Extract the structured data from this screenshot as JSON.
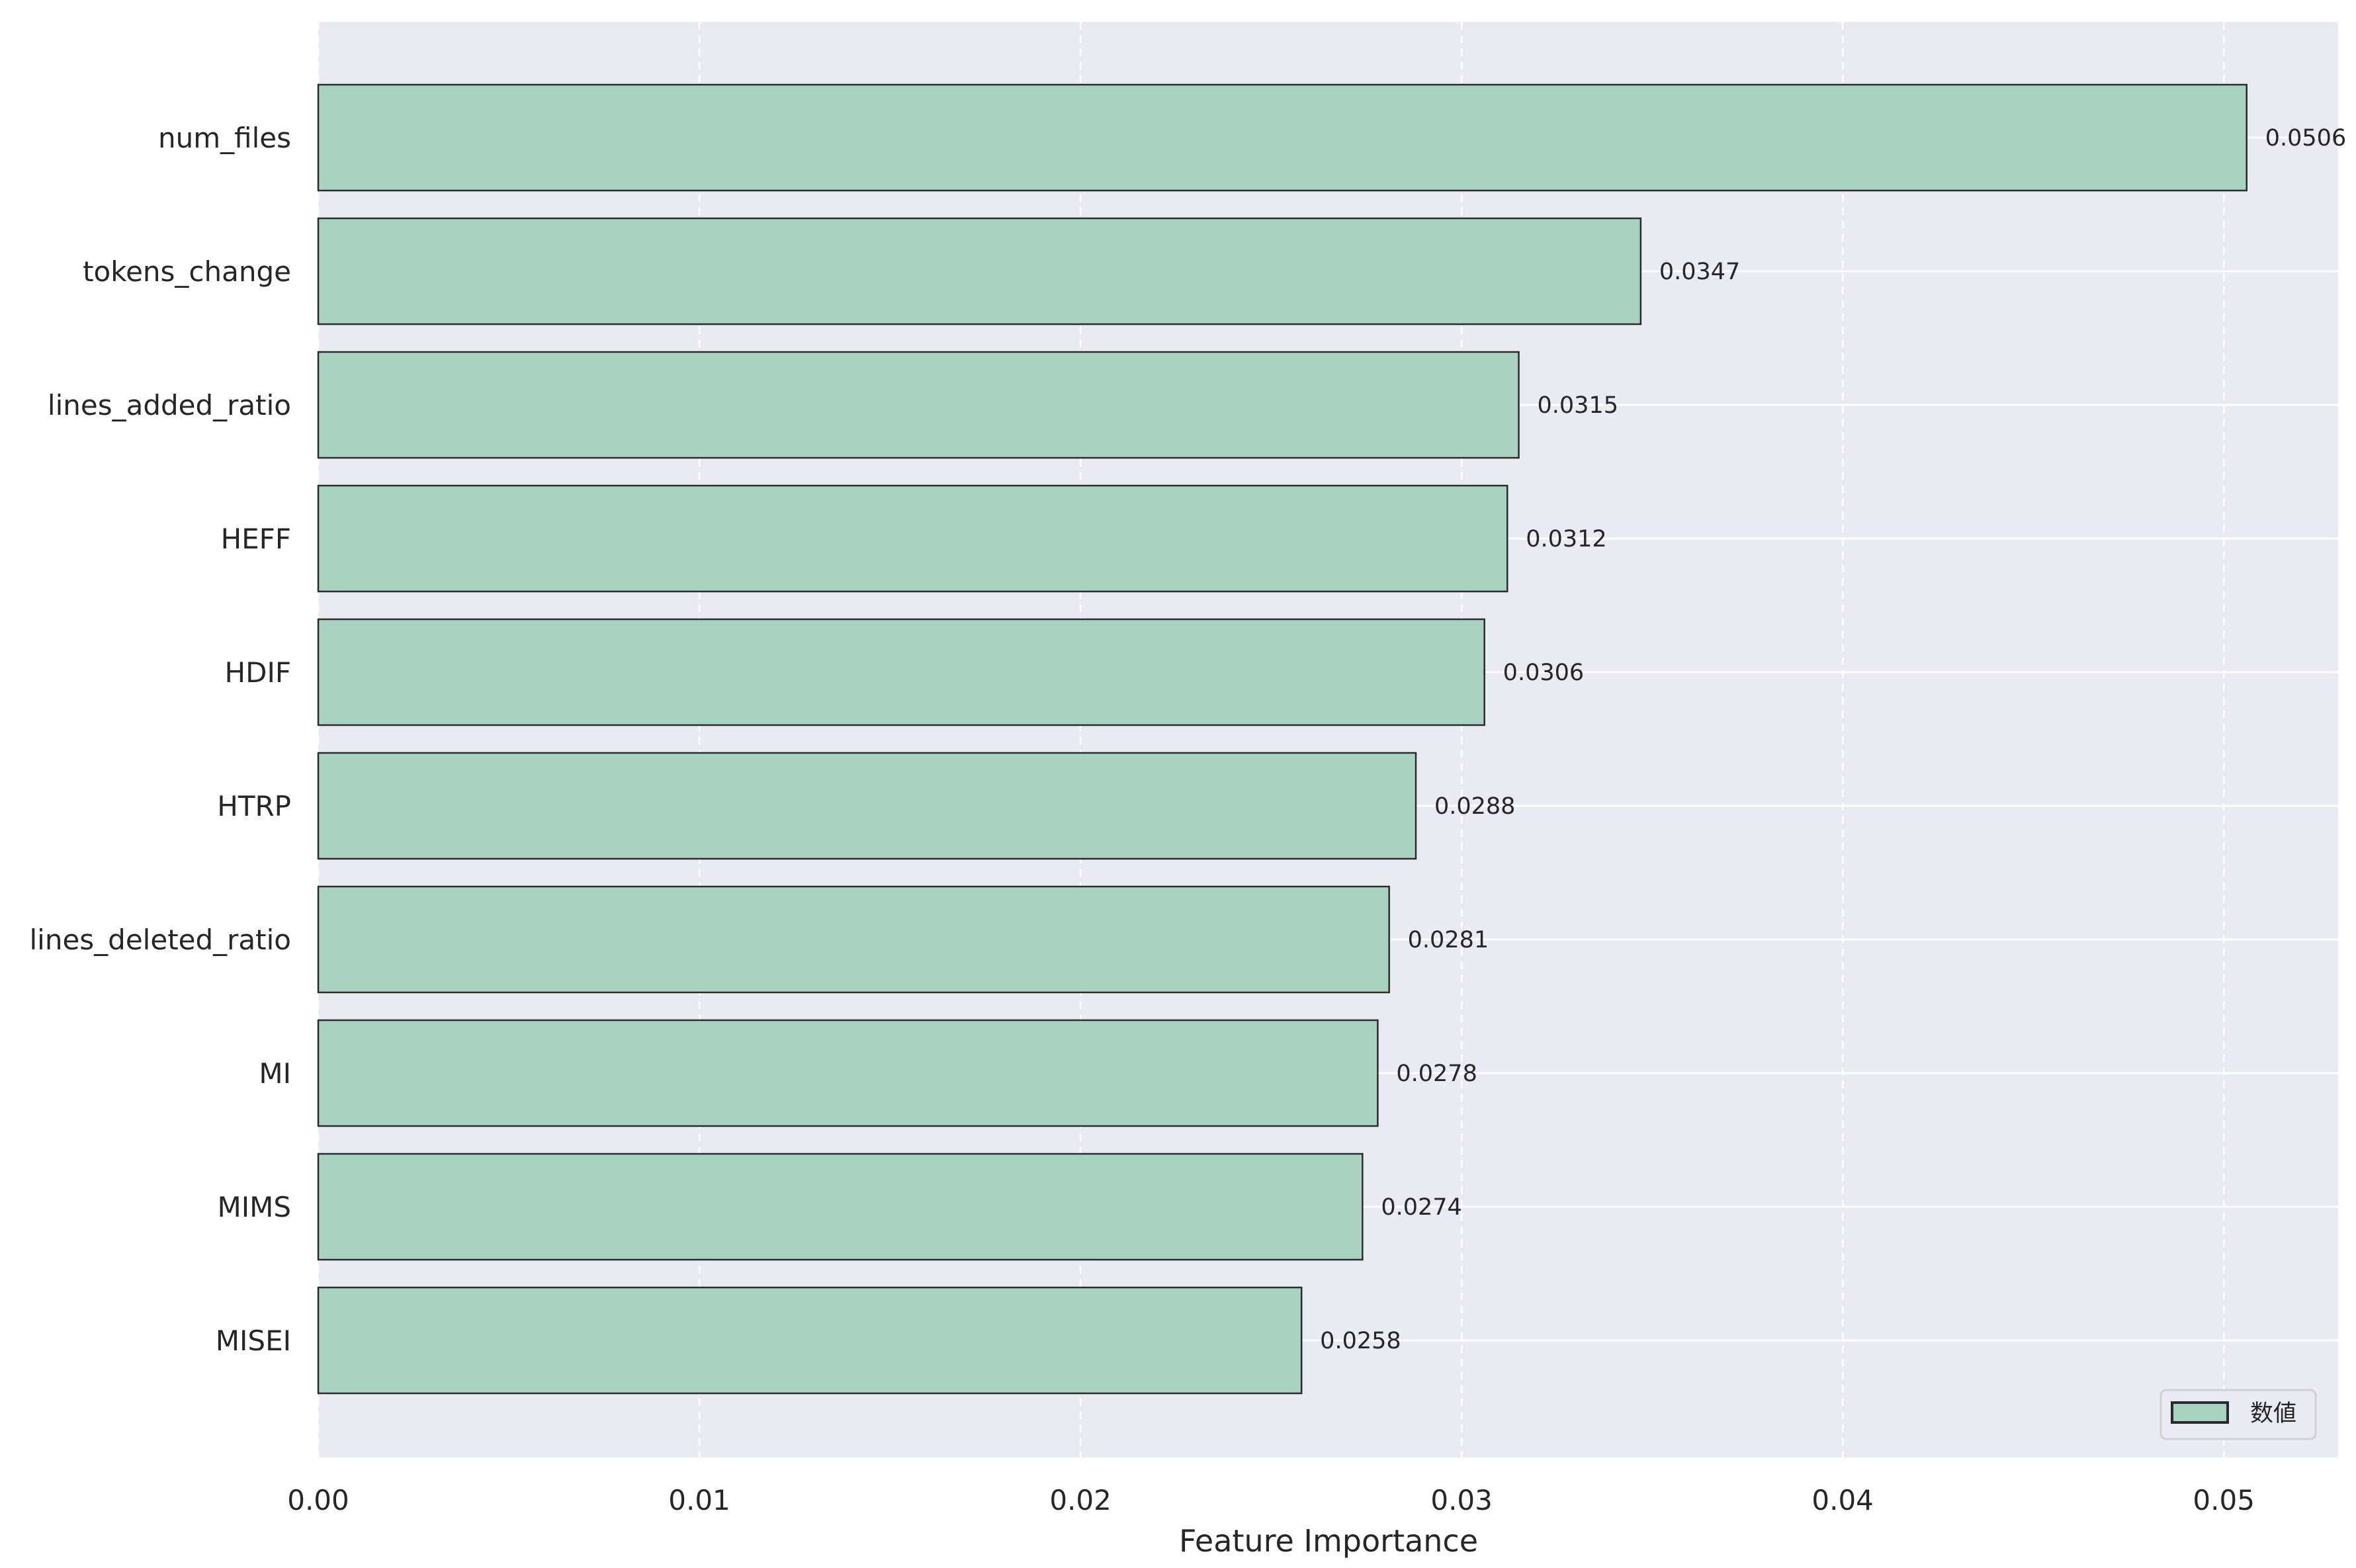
{
  "chart_data": {
    "type": "bar",
    "orientation": "horizontal",
    "title": "",
    "xlabel": "Feature Importance",
    "ylabel": "",
    "categories": [
      "num_files",
      "tokens_change",
      "lines_added_ratio",
      "HEFF",
      "HDIF",
      "HTRP",
      "lines_deleted_ratio",
      "MI",
      "MIMS",
      "MISEI"
    ],
    "values": [
      0.0506,
      0.0347,
      0.0315,
      0.0312,
      0.0306,
      0.0288,
      0.0281,
      0.0278,
      0.0274,
      0.0258
    ],
    "value_labels": [
      "0.0506",
      "0.0347",
      "0.0315",
      "0.0312",
      "0.0306",
      "0.0288",
      "0.0281",
      "0.0278",
      "0.0274",
      "0.0258"
    ],
    "xlim": [
      0,
      0.053
    ],
    "xticks": [
      0,
      0.01,
      0.02,
      0.03,
      0.04,
      0.05
    ],
    "xtick_labels": [
      "0.00",
      "0.01",
      "0.02",
      "0.03",
      "0.04",
      "0.05"
    ],
    "grid": true,
    "legend": {
      "entries": [
        "数値"
      ],
      "placement": "bottom-right"
    },
    "colors": {
      "bar": "#a8d3c1",
      "edge": "#2b2b2b",
      "background": "#eaeaf2",
      "grid": "#ffffff"
    }
  }
}
